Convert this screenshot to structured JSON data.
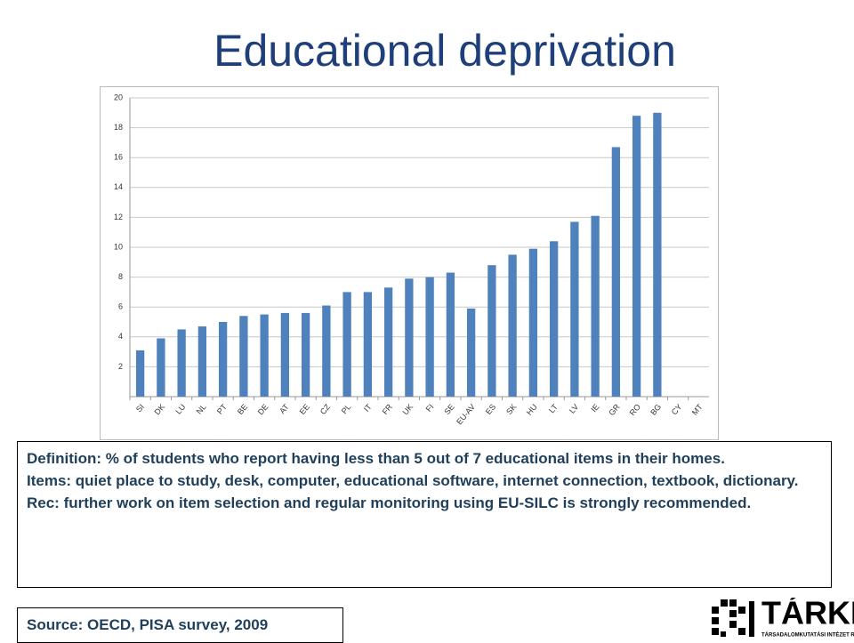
{
  "chart_data": {
    "type": "bar",
    "title": "Educational deprivation",
    "categories": [
      "SI",
      "DK",
      "LU",
      "NL",
      "PT",
      "BE",
      "DE",
      "AT",
      "EE",
      "CZ",
      "PL",
      "IT",
      "FR",
      "UK",
      "FI",
      "SE",
      "EU-AV",
      "ES",
      "SK",
      "HU",
      "LT",
      "LV",
      "IE",
      "GR",
      "RO",
      "BG",
      "CY",
      "MT"
    ],
    "values": [
      3.1,
      3.9,
      4.5,
      4.7,
      5.0,
      5.4,
      5.5,
      5.6,
      5.6,
      6.1,
      7.0,
      7.0,
      7.3,
      7.9,
      8.0,
      8.3,
      5.9,
      8.8,
      9.5,
      9.9,
      10.4,
      11.7,
      12.1,
      16.7,
      18.8,
      19.0,
      null,
      null
    ],
    "color": "#4f81bd",
    "ylim": [
      0,
      20
    ],
    "yticks": [
      2,
      4,
      6,
      8,
      10,
      12,
      14,
      16,
      18,
      20
    ],
    "grid": true
  },
  "definition": [
    "Definition: % of students who report having less than 5 out of 7 educational items in their homes.",
    "Items: quiet place to study, desk, computer, educational software, internet connection, textbook, dictionary.",
    "Rec: further work on item selection and regular monitoring using EU-SILC is strongly recommended."
  ],
  "source": "Source: OECD, PISA survey, 2009",
  "logo": {
    "name": "TÁRKI",
    "tagline": "TÁRSADALOMKUTATÁSI INTÉZET RT."
  }
}
